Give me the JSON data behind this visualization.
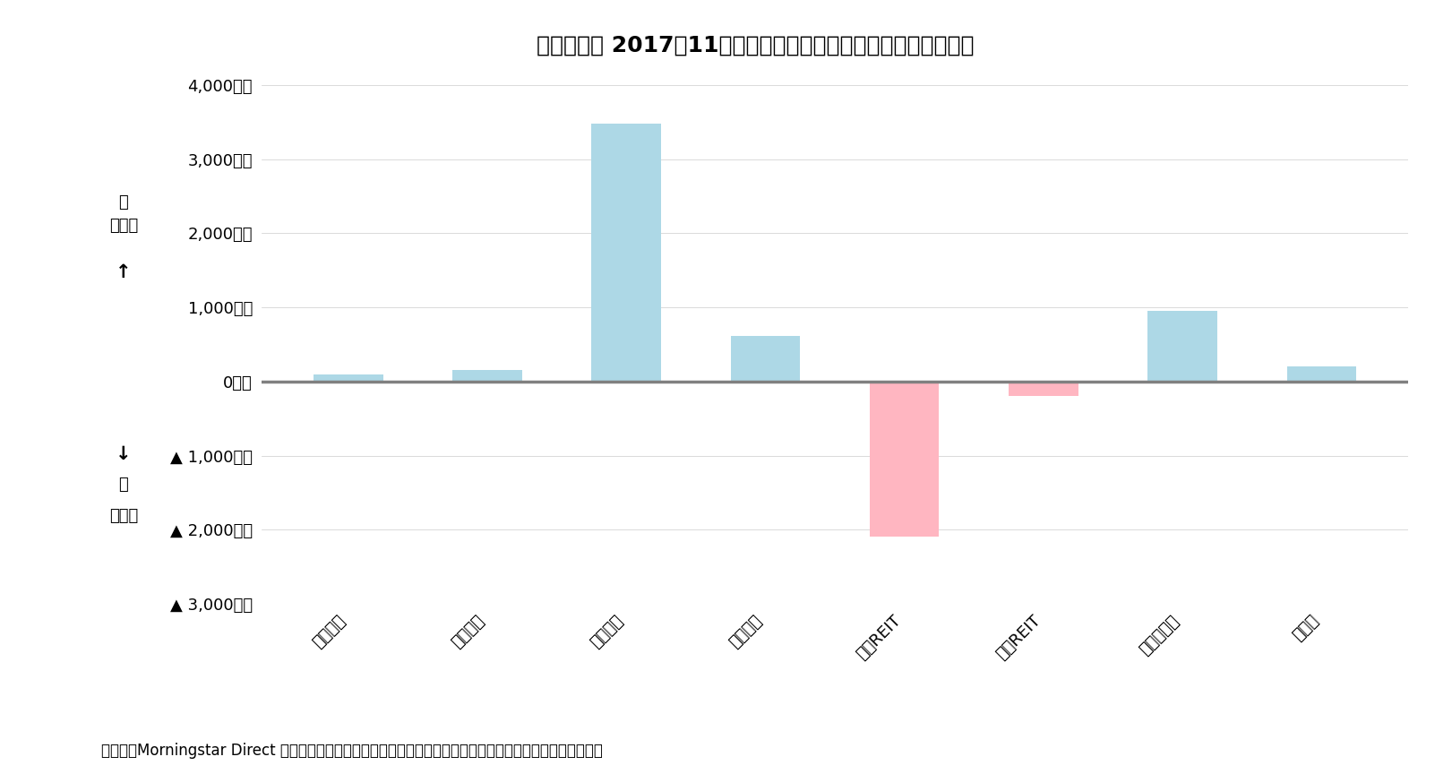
{
  "title": "》図表１》 2017年11月の国内公募追加型投信の推計資金流出入",
  "categories": [
    "国内株式",
    "国内債券",
    "外国株式",
    "外国債券",
    "外国REIT",
    "国内REIT",
    "バランス型",
    "その他"
  ],
  "values": [
    100,
    150,
    3480,
    620,
    -2100,
    -200,
    950,
    200
  ],
  "bar_colors_pos": "#ADD8E6",
  "bar_colors_neg": "#FFB6C1",
  "zero_line_color": "#808080",
  "ylim": [
    -3000,
    4000
  ],
  "yticks": [
    -3000,
    -2000,
    -1000,
    0,
    1000,
    2000,
    3000,
    4000
  ],
  "ylabel_top_lines": [
    "入",
    "資金流",
    "←",
    "↑"
  ],
  "ylabel_bottom_lines": [
    "↓",
    "出",
    "資金流"
  ],
  "caption": "（資料）Morningstar Direct を用いて筆者集計。各資産クラスはイボットソン分類を用いてファンドを分類。",
  "background_color": "#FFFFFF",
  "title_fontsize": 18,
  "tick_fontsize": 13,
  "caption_fontsize": 12,
  "ylabel_fontsize": 13
}
